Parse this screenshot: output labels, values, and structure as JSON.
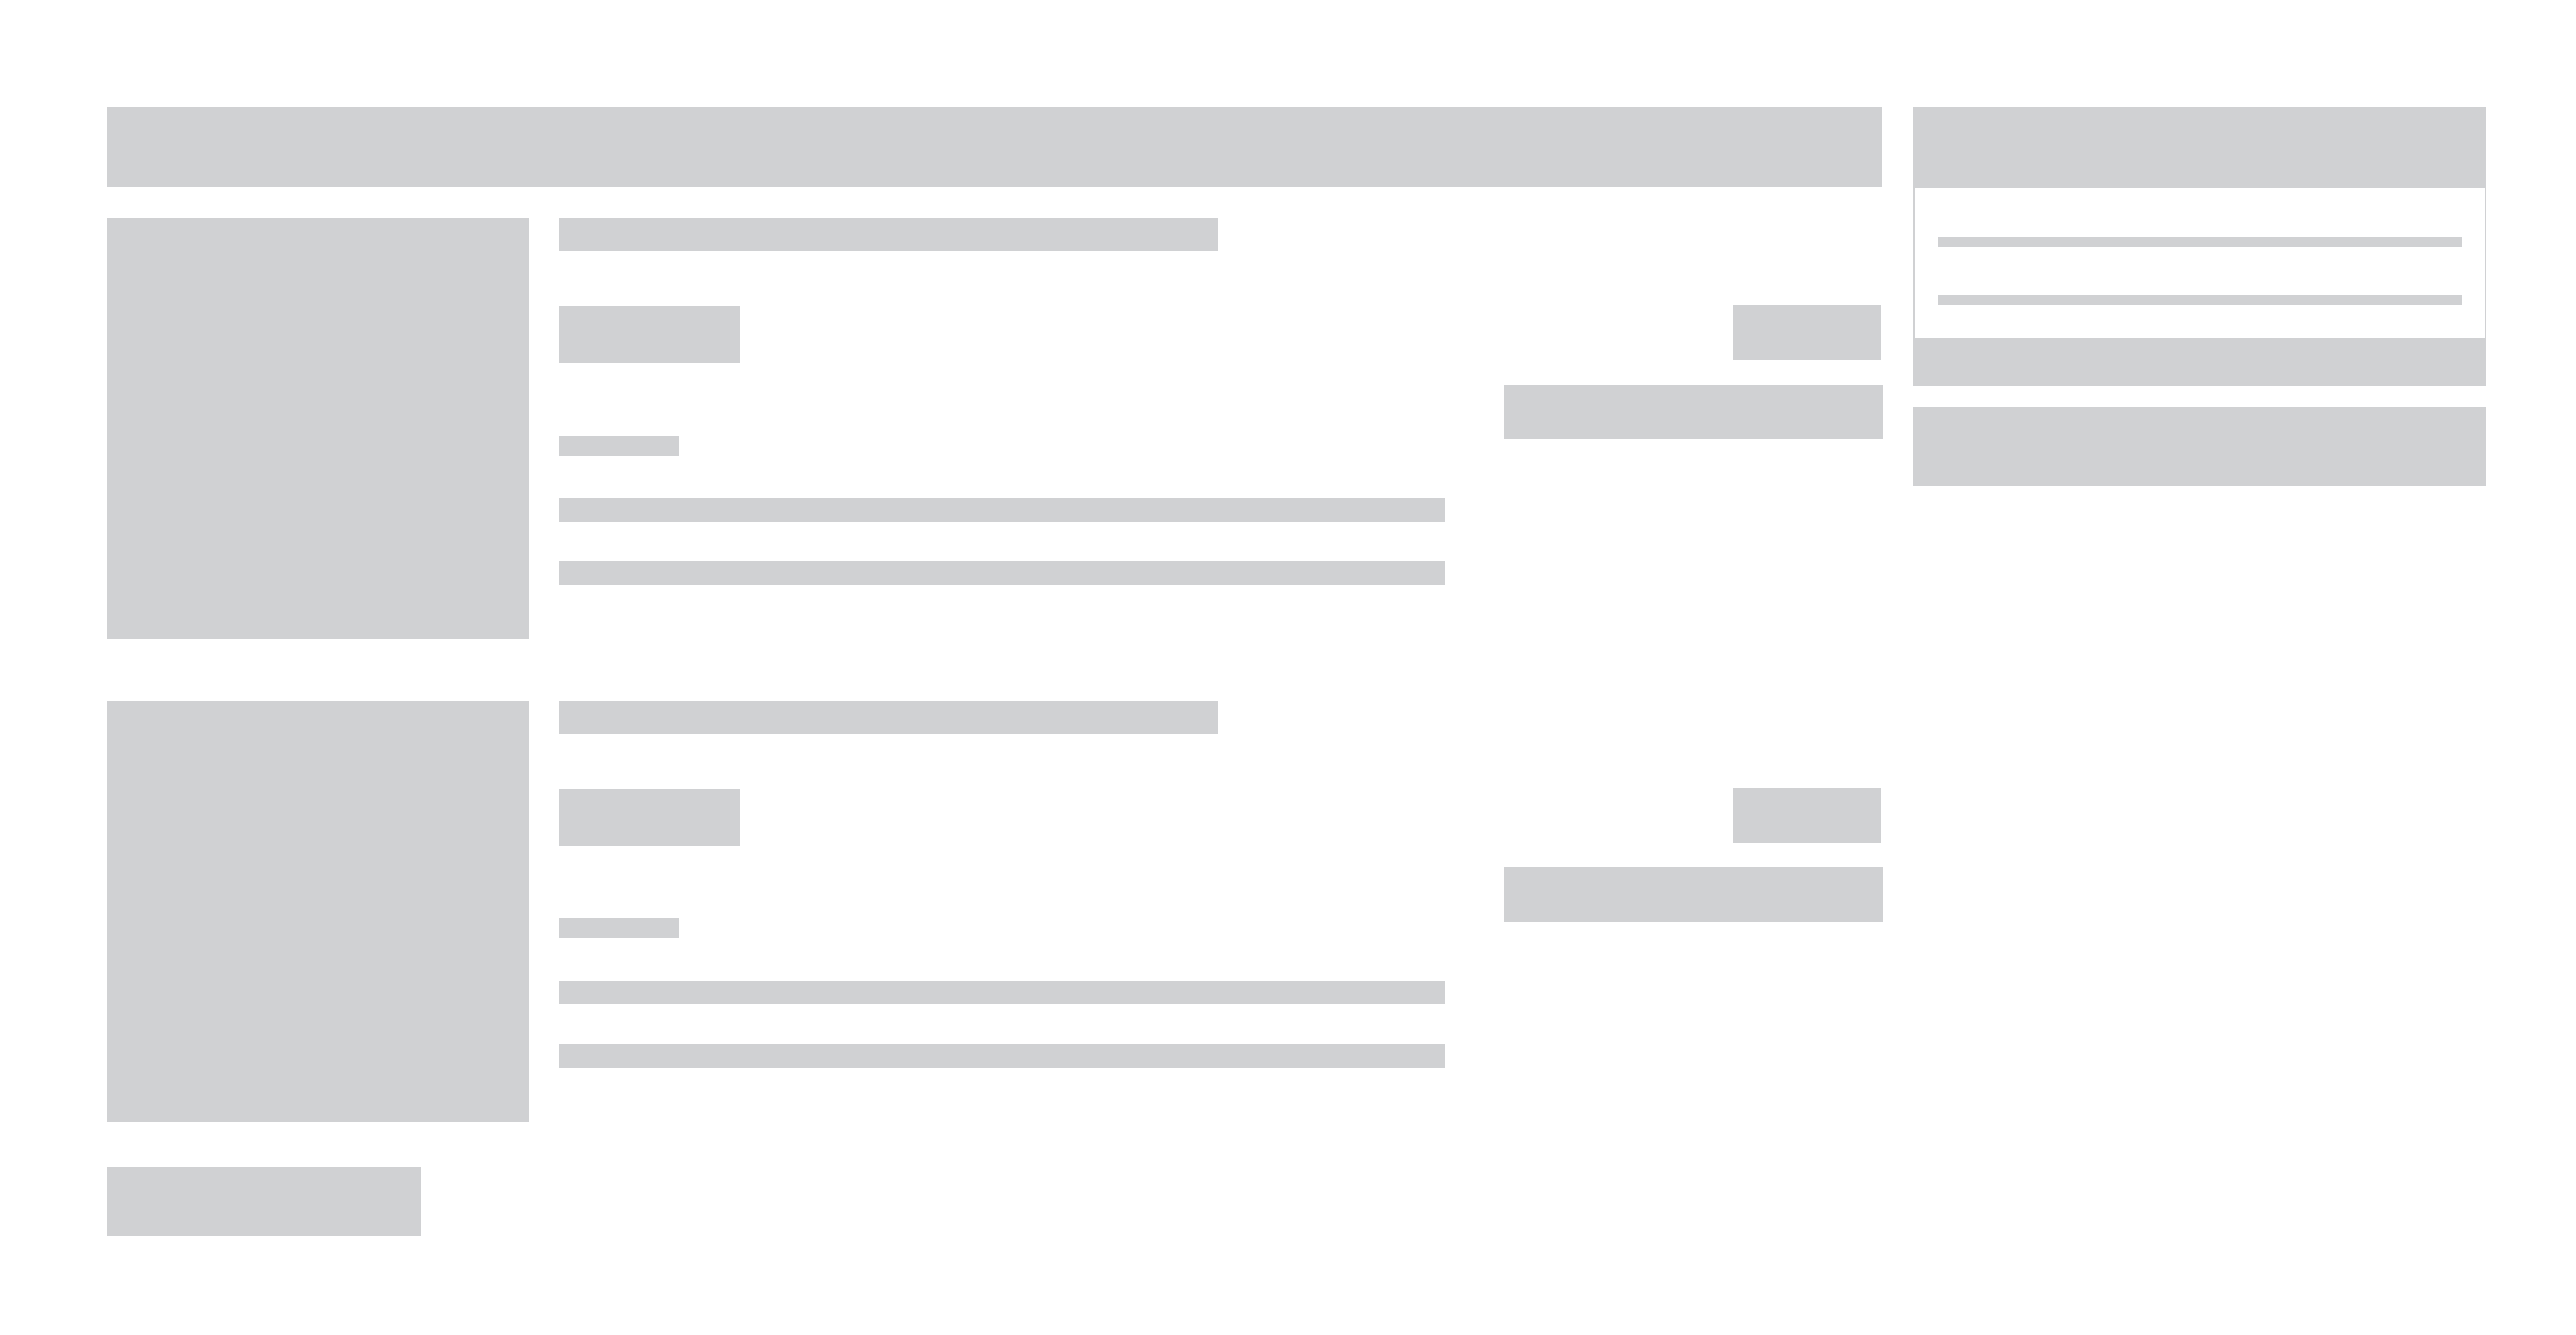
{
  "page": {
    "state": "loading-skeleton",
    "placeholder_color": "#d0d1d3",
    "background_color": "#ffffff"
  },
  "header": {
    "title": ""
  },
  "items": [
    {
      "thumbnail_icon": "image-placeholder",
      "title": "",
      "tag": "",
      "meta": "",
      "description_lines": [
        "",
        ""
      ],
      "price": "",
      "action_label": ""
    },
    {
      "thumbnail_icon": "image-placeholder",
      "title": "",
      "tag": "",
      "meta": "",
      "description_lines": [
        "",
        ""
      ],
      "price": "",
      "action_label": ""
    }
  ],
  "load_more": {
    "label": ""
  },
  "sidebar": {
    "header": "",
    "lines": [
      "",
      ""
    ],
    "footer": "",
    "action_label": ""
  }
}
